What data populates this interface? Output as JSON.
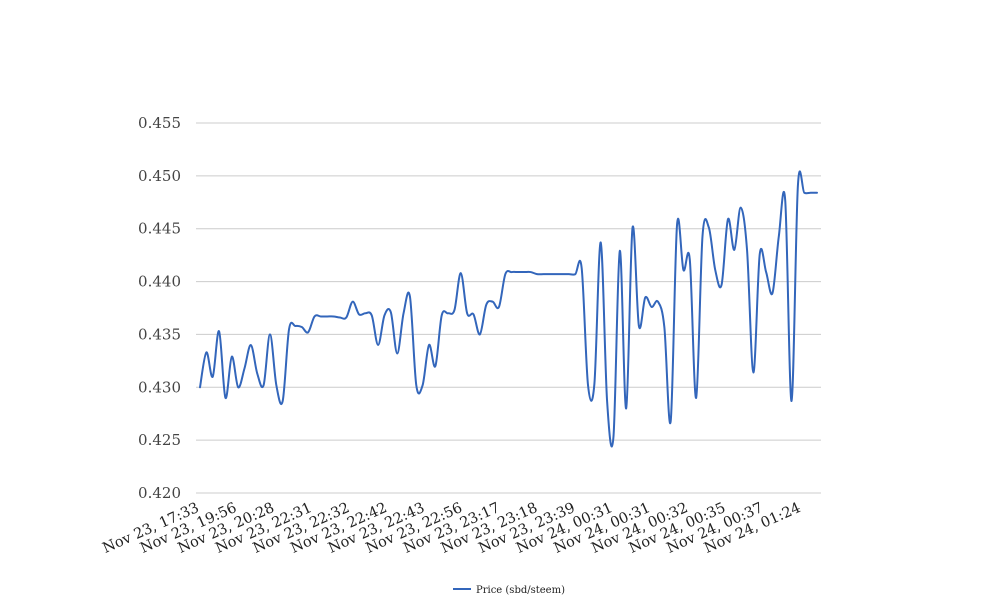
{
  "chart_data": {
    "type": "line",
    "title": "",
    "xlabel": "",
    "ylabel": "",
    "ylim": [
      0.42,
      0.455
    ],
    "yticks": [
      "0.420",
      "0.425",
      "0.430",
      "0.435",
      "0.440",
      "0.445",
      "0.450",
      "0.455"
    ],
    "x_tick_labels": [
      "Nov 23, 17:33",
      "Nov 23, 19:56",
      "Nov 23, 20:28",
      "Nov 23, 22:31",
      "Nov 23, 22:32",
      "Nov 23, 22:42",
      "Nov 23, 22:43",
      "Nov 23, 22:56",
      "Nov 23, 23:17",
      "Nov 23, 23:18",
      "Nov 23, 23:39",
      "Nov 24, 00:31",
      "Nov 24, 00:31",
      "Nov 24, 00:32",
      "Nov 24, 00:35",
      "Nov 24, 00:37",
      "Nov 24, 01:24"
    ],
    "grid": true,
    "legend_position": "bottom",
    "series": [
      {
        "name": "Price (sbd/steem)",
        "color": "#3366bb",
        "values": [
          0.43,
          0.4333,
          0.431,
          0.4353,
          0.429,
          0.4329,
          0.43,
          0.4318,
          0.434,
          0.4313,
          0.4302,
          0.435,
          0.4302,
          0.4287,
          0.4355,
          0.4358,
          0.4357,
          0.4352,
          0.4367,
          0.4367,
          0.4367,
          0.4367,
          0.4366,
          0.4366,
          0.4381,
          0.4369,
          0.437,
          0.4368,
          0.434,
          0.4368,
          0.4371,
          0.4332,
          0.437,
          0.4386,
          0.4302,
          0.4302,
          0.434,
          0.432,
          0.4368,
          0.437,
          0.4373,
          0.4408,
          0.437,
          0.4369,
          0.435,
          0.4378,
          0.4381,
          0.4376,
          0.4407,
          0.4409,
          0.4409,
          0.4409,
          0.4409,
          0.4407,
          0.4407,
          0.4407,
          0.4407,
          0.4407,
          0.4407,
          0.4407,
          0.4413,
          0.4302,
          0.4303,
          0.4437,
          0.4287,
          0.4253,
          0.4429,
          0.428,
          0.4451,
          0.4358,
          0.4385,
          0.4376,
          0.4381,
          0.4357,
          0.4268,
          0.4454,
          0.4411,
          0.4421,
          0.429,
          0.4443,
          0.4451,
          0.4411,
          0.4397,
          0.4459,
          0.443,
          0.447,
          0.443,
          0.4314,
          0.4426,
          0.4409,
          0.4389,
          0.4443,
          0.4477,
          0.4287,
          0.4491,
          0.4484,
          0.4484,
          0.4484
        ]
      }
    ]
  }
}
